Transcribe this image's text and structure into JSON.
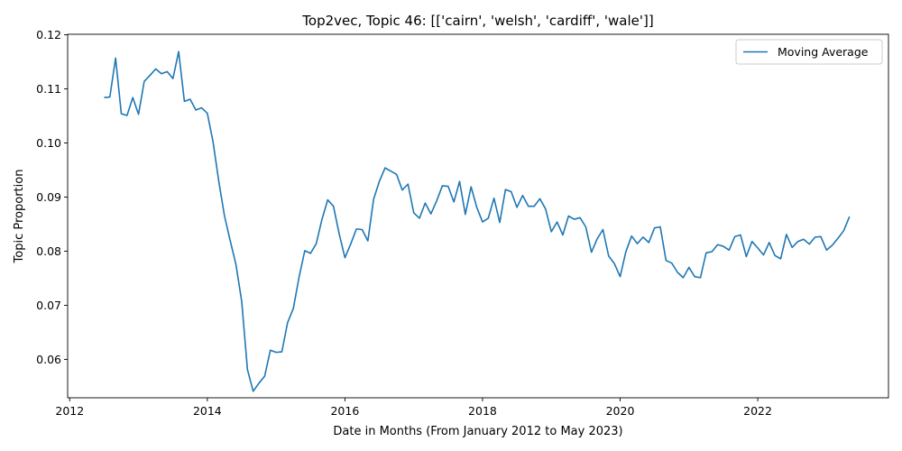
{
  "chart_data": {
    "type": "line",
    "title": "Top2vec, Topic 46: [['cairn', 'welsh', 'cardiff', 'wale']]",
    "xlabel": "Date in Months (From January 2012 to May 2023)",
    "ylabel": "Topic Proportion",
    "xlim": [
      2011.97,
      2023.9
    ],
    "ylim": [
      0.0529,
      0.1201
    ],
    "x_ticks": [
      2012,
      2014,
      2016,
      2018,
      2020,
      2022
    ],
    "x_tick_labels": [
      "2012",
      "2014",
      "2016",
      "2018",
      "2020",
      "2022"
    ],
    "y_ticks": [
      0.06,
      0.07,
      0.08,
      0.09,
      0.1,
      0.11,
      0.12
    ],
    "y_tick_labels": [
      "0.06",
      "0.07",
      "0.08",
      "0.09",
      "0.10",
      "0.11",
      "0.12"
    ],
    "grid": false,
    "legend_position": "upper right",
    "color": "#1f77b4",
    "series": [
      {
        "name": "Moving Average",
        "x": [
          "2012-07",
          "2012-08",
          "2012-09",
          "2012-10",
          "2012-11",
          "2012-12",
          "2013-01",
          "2013-02",
          "2013-03",
          "2013-04",
          "2013-05",
          "2013-06",
          "2013-07",
          "2013-08",
          "2013-09",
          "2013-10",
          "2013-11",
          "2013-12",
          "2014-01",
          "2014-02",
          "2014-03",
          "2014-04",
          "2014-05",
          "2014-06",
          "2014-07",
          "2014-08",
          "2014-09",
          "2014-10",
          "2014-11",
          "2014-12",
          "2015-01",
          "2015-02",
          "2015-03",
          "2015-04",
          "2015-05",
          "2015-06",
          "2015-07",
          "2015-08",
          "2015-09",
          "2015-10",
          "2015-11",
          "2015-12",
          "2016-01",
          "2016-02",
          "2016-03",
          "2016-04",
          "2016-05",
          "2016-06",
          "2016-07",
          "2016-08",
          "2016-09",
          "2016-10",
          "2016-11",
          "2016-12",
          "2017-01",
          "2017-02",
          "2017-03",
          "2017-04",
          "2017-05",
          "2017-06",
          "2017-07",
          "2017-08",
          "2017-09",
          "2017-10",
          "2017-11",
          "2017-12",
          "2018-01",
          "2018-02",
          "2018-03",
          "2018-04",
          "2018-05",
          "2018-06",
          "2018-07",
          "2018-08",
          "2018-09",
          "2018-10",
          "2018-11",
          "2018-12",
          "2019-01",
          "2019-02",
          "2019-03",
          "2019-04",
          "2019-05",
          "2019-06",
          "2019-07",
          "2019-08",
          "2019-09",
          "2019-10",
          "2019-11",
          "2019-12",
          "2020-01",
          "2020-02",
          "2020-03",
          "2020-04",
          "2020-05",
          "2020-06",
          "2020-07",
          "2020-08",
          "2020-09",
          "2020-10",
          "2020-11",
          "2020-12",
          "2021-01",
          "2021-02",
          "2021-03",
          "2021-04",
          "2021-05",
          "2021-06",
          "2021-07",
          "2021-08",
          "2021-09",
          "2021-10",
          "2021-11",
          "2021-12",
          "2022-01",
          "2022-02",
          "2022-03",
          "2022-04",
          "2022-05",
          "2022-06",
          "2022-07",
          "2022-08",
          "2022-09",
          "2022-10",
          "2022-11",
          "2022-12",
          "2023-01",
          "2023-02",
          "2023-03",
          "2023-04",
          "2023-05"
        ],
        "values": [
          0.1084,
          0.1085,
          0.1157,
          0.1054,
          0.1051,
          0.1084,
          0.1053,
          0.1114,
          0.1125,
          0.1137,
          0.1128,
          0.1132,
          0.1119,
          0.1169,
          0.1077,
          0.1081,
          0.1061,
          0.1065,
          0.1055,
          0.1002,
          0.0929,
          0.0865,
          0.0819,
          0.0775,
          0.0707,
          0.0581,
          0.0541,
          0.0556,
          0.0569,
          0.0617,
          0.0613,
          0.0614,
          0.0668,
          0.0694,
          0.0752,
          0.0801,
          0.0796,
          0.0814,
          0.0859,
          0.0895,
          0.0883,
          0.0832,
          0.0788,
          0.0813,
          0.0841,
          0.084,
          0.0819,
          0.0896,
          0.0929,
          0.0954,
          0.0948,
          0.0942,
          0.0913,
          0.0924,
          0.0871,
          0.0861,
          0.0889,
          0.0869,
          0.0893,
          0.0921,
          0.092,
          0.0891,
          0.0929,
          0.0868,
          0.0919,
          0.0881,
          0.0854,
          0.0861,
          0.0898,
          0.0853,
          0.0914,
          0.091,
          0.0881,
          0.0903,
          0.0883,
          0.0883,
          0.0897,
          0.0878,
          0.0836,
          0.0854,
          0.083,
          0.0865,
          0.0859,
          0.0862,
          0.0845,
          0.0798,
          0.0823,
          0.084,
          0.0791,
          0.0777,
          0.0753,
          0.0799,
          0.0828,
          0.0814,
          0.0826,
          0.0816,
          0.0843,
          0.0845,
          0.0783,
          0.0778,
          0.0761,
          0.0751,
          0.077,
          0.0753,
          0.0751,
          0.0797,
          0.0799,
          0.0812,
          0.0809,
          0.0802,
          0.0827,
          0.083,
          0.079,
          0.0818,
          0.0806,
          0.0793,
          0.0816,
          0.0792,
          0.0786,
          0.0831,
          0.0807,
          0.0818,
          0.0822,
          0.0813,
          0.0826,
          0.0827,
          0.0802,
          0.0811,
          0.0824,
          0.0838,
          0.0864
        ]
      }
    ]
  }
}
